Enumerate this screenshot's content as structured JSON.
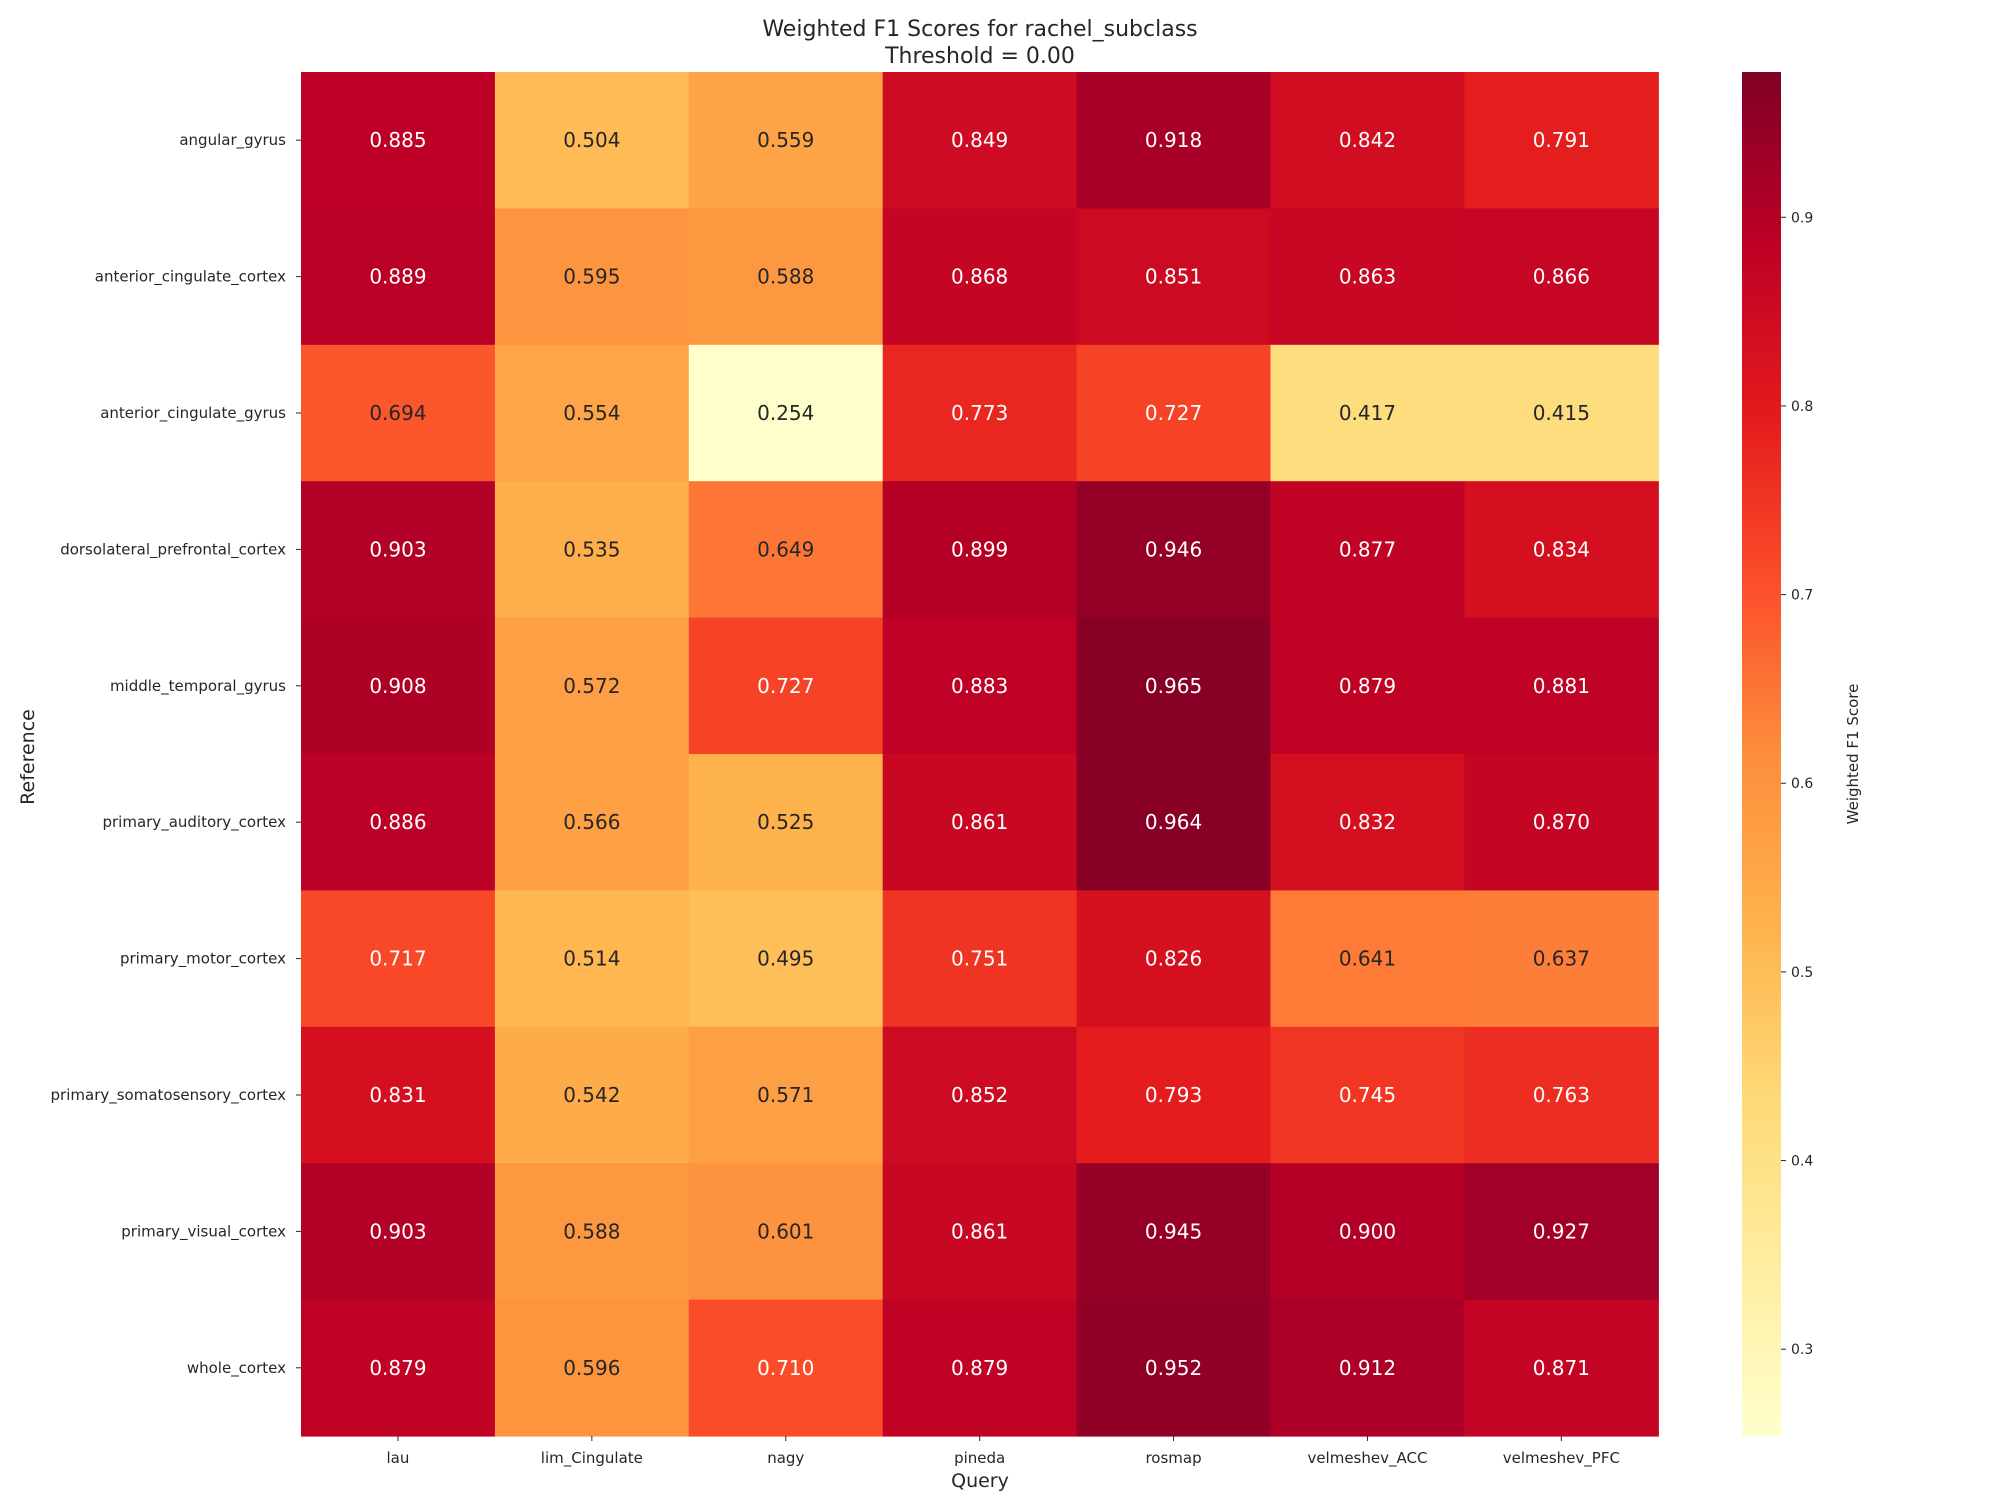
{
  "chart_data": {
    "type": "heatmap",
    "title": "Weighted F1 Scores for rachel_subclass",
    "subtitle": "Threshold = 0.00",
    "xlabel": "Query",
    "ylabel": "Reference",
    "colorbar_label": "Weighted F1 Score",
    "colormap": "YlOrRd",
    "color_range": [
      0.254,
      0.977
    ],
    "colorbar_ticks": [
      "0.3",
      "0.4",
      "0.5",
      "0.6",
      "0.7",
      "0.8",
      "0.9"
    ],
    "x_categories": [
      "lau",
      "lim_Cingulate",
      "nagy",
      "pineda",
      "rosmap",
      "velmeshev_ACC",
      "velmeshev_PFC"
    ],
    "y_categories": [
      "angular_gyrus",
      "anterior_cingulate_cortex",
      "anterior_cingulate_gyrus",
      "dorsolateral_prefrontal_cortex",
      "middle_temporal_gyrus",
      "primary_auditory_cortex",
      "primary_motor_cortex",
      "primary_somatosensory_cortex",
      "primary_visual_cortex",
      "whole_cortex"
    ],
    "values": [
      [
        0.885,
        0.504,
        0.559,
        0.849,
        0.918,
        0.842,
        0.791
      ],
      [
        0.889,
        0.595,
        0.588,
        0.868,
        0.851,
        0.863,
        0.866
      ],
      [
        0.694,
        0.554,
        0.254,
        0.773,
        0.727,
        0.417,
        0.415
      ],
      [
        0.903,
        0.535,
        0.649,
        0.899,
        0.946,
        0.877,
        0.834
      ],
      [
        0.908,
        0.572,
        0.727,
        0.883,
        0.965,
        0.879,
        0.881
      ],
      [
        0.886,
        0.566,
        0.525,
        0.861,
        0.964,
        0.832,
        0.87
      ],
      [
        0.717,
        0.514,
        0.495,
        0.751,
        0.826,
        0.641,
        0.637
      ],
      [
        0.831,
        0.542,
        0.571,
        0.852,
        0.793,
        0.745,
        0.763
      ],
      [
        0.903,
        0.588,
        0.601,
        0.861,
        0.945,
        0.9,
        0.927
      ],
      [
        0.879,
        0.596,
        0.71,
        0.879,
        0.952,
        0.912,
        0.871
      ]
    ],
    "value_labels": [
      [
        "0.885",
        "0.504",
        "0.559",
        "0.849",
        "0.918",
        "0.842",
        "0.791"
      ],
      [
        "0.889",
        "0.595",
        "0.588",
        "0.868",
        "0.851",
        "0.863",
        "0.866"
      ],
      [
        "0.694",
        "0.554",
        "0.254",
        "0.773",
        "0.727",
        "0.417",
        "0.415"
      ],
      [
        "0.903",
        "0.535",
        "0.649",
        "0.899",
        "0.946",
        "0.877",
        "0.834"
      ],
      [
        "0.908",
        "0.572",
        "0.727",
        "0.883",
        "0.965",
        "0.879",
        "0.881"
      ],
      [
        "0.886",
        "0.566",
        "0.525",
        "0.861",
        "0.964",
        "0.832",
        "0.870"
      ],
      [
        "0.717",
        "0.514",
        "0.495",
        "0.751",
        "0.826",
        "0.641",
        "0.637"
      ],
      [
        "0.831",
        "0.542",
        "0.571",
        "0.852",
        "0.793",
        "0.745",
        "0.763"
      ],
      [
        "0.903",
        "0.588",
        "0.601",
        "0.861",
        "0.945",
        "0.900",
        "0.927"
      ],
      [
        "0.879",
        "0.596",
        "0.710",
        "0.879",
        "0.952",
        "0.912",
        "0.871"
      ]
    ]
  }
}
